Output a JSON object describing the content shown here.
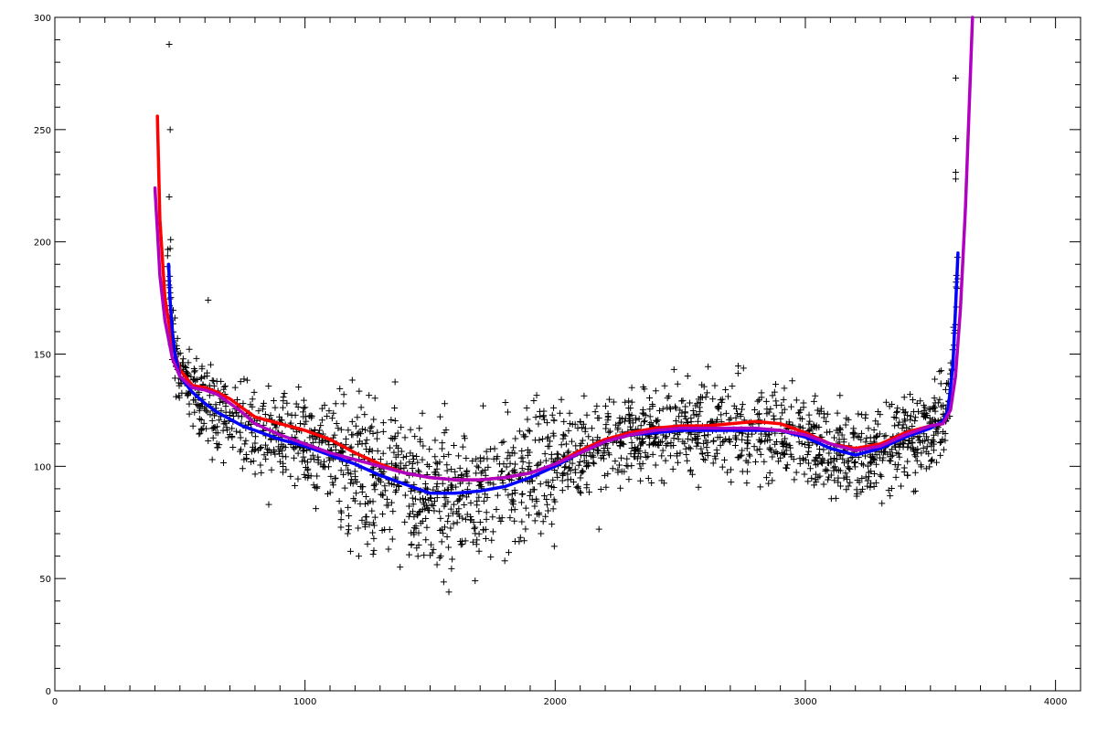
{
  "chart_data": {
    "type": "scatter",
    "title": "",
    "xlabel": "",
    "ylabel": "",
    "xlim": [
      0,
      4100
    ],
    "ylim": [
      0,
      300
    ],
    "grid": false,
    "x_ticks": [
      0,
      1000,
      2000,
      3000,
      4000
    ],
    "y_ticks": [
      0,
      50,
      100,
      150,
      200,
      250,
      300
    ],
    "x_tick_labels": [
      "0",
      "1000",
      "2000",
      "3000",
      "4000"
    ],
    "y_tick_labels": [
      "0",
      "50",
      "100",
      "150",
      "200",
      "250",
      "300"
    ],
    "x_minor_step": 100,
    "y_minor_step": 10,
    "scatter": {
      "marker": "+",
      "color": "#000000",
      "count": 2200,
      "x_range": [
        450,
        3610
      ],
      "points": [
        [
          457,
          288
        ],
        [
          461,
          250
        ],
        [
          457,
          220
        ],
        [
          463,
          201
        ],
        [
          461,
          197
        ],
        [
          613,
          174
        ],
        [
          3601,
          273
        ],
        [
          3601,
          246
        ],
        [
          3601,
          231
        ],
        [
          3601,
          228
        ],
        [
          1575,
          44
        ],
        [
          1680,
          49
        ],
        [
          1215,
          60
        ],
        [
          2175,
          72
        ],
        [
          3440,
          89
        ],
        [
          855,
          83
        ]
      ]
    },
    "series": [
      {
        "color": "#ff0000",
        "x": [
          410,
          420,
          440,
          470,
          500,
          550,
          600,
          650,
          700,
          750,
          800,
          900,
          1000,
          1100,
          1200,
          1300,
          1400,
          1500,
          1600,
          1700,
          1800,
          1900,
          2000,
          2100,
          2200,
          2300,
          2400,
          2500,
          2600,
          2700,
          2800,
          2900,
          3000,
          3100,
          3200,
          3300,
          3400,
          3500,
          3550
        ],
        "y": [
          256,
          210,
          175,
          154,
          143,
          136,
          135,
          133,
          130,
          126,
          122,
          119,
          116,
          112,
          106,
          101,
          97,
          95,
          94,
          94,
          95,
          97,
          101,
          107,
          112,
          115,
          117,
          118,
          118,
          119,
          120,
          119,
          115,
          110,
          108,
          110,
          115,
          118,
          119
        ]
      },
      {
        "color": "#0000ff",
        "x": [
          455,
          460,
          470,
          480,
          500,
          550,
          600,
          650,
          700,
          750,
          800,
          900,
          1000,
          1100,
          1200,
          1300,
          1400,
          1500,
          1600,
          1700,
          1800,
          1900,
          2000,
          2100,
          2200,
          2300,
          2400,
          2500,
          2600,
          2700,
          2800,
          2900,
          3000,
          3100,
          3200,
          3300,
          3400,
          3500,
          3550,
          3570,
          3590,
          3600,
          3610
        ],
        "y": [
          190,
          175,
          160,
          150,
          140,
          133,
          128,
          124,
          121,
          118,
          116,
          112,
          109,
          105,
          101,
          96,
          92,
          88,
          88,
          89,
          91,
          95,
          100,
          106,
          111,
          114,
          115,
          116,
          116,
          116,
          116,
          116,
          113,
          108,
          105,
          108,
          113,
          117,
          120,
          125,
          145,
          170,
          195
        ]
      },
      {
        "color": "#b000c0",
        "x": [
          400,
          410,
          420,
          440,
          470,
          500,
          550,
          600,
          650,
          700,
          750,
          800,
          900,
          1000,
          1100,
          1200,
          1300,
          1400,
          1500,
          1600,
          1700,
          1800,
          1900,
          2000,
          2100,
          2200,
          2300,
          2400,
          2500,
          2600,
          2700,
          2800,
          2900,
          3000,
          3100,
          3200,
          3300,
          3400,
          3500,
          3550,
          3580,
          3600,
          3620,
          3640,
          3655,
          3668
        ],
        "y": [
          224,
          205,
          185,
          165,
          148,
          140,
          135,
          134,
          132,
          128,
          124,
          119,
          114,
          110,
          106,
          103,
          100,
          97,
          95,
          94,
          94,
          95,
          97,
          101,
          106,
          111,
          114,
          116,
          117,
          117,
          117,
          117,
          116,
          114,
          110,
          107,
          109,
          114,
          118,
          119,
          125,
          140,
          170,
          215,
          260,
          300
        ]
      }
    ]
  }
}
